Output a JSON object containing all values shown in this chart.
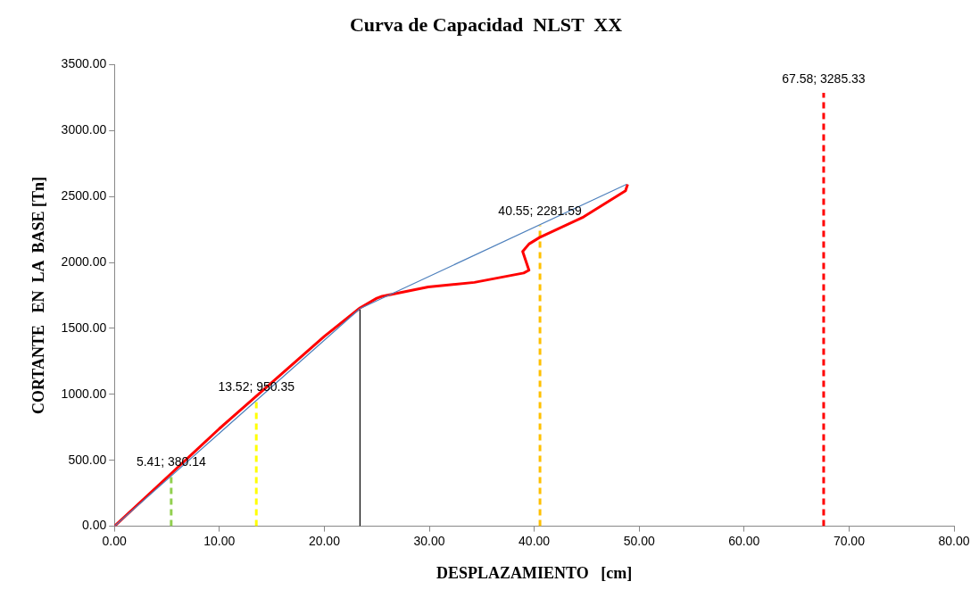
{
  "chart_data": {
    "type": "line",
    "title": "Curva de Capacidad  NLST  XX",
    "xlabel": "DESPLAZAMIENTO   [cm]",
    "ylabel": "CORTANTE   EN  LA  BASE [Tn]",
    "xlim": [
      0,
      80
    ],
    "ylim": [
      0,
      3500
    ],
    "xticks": [
      {
        "value": 0,
        "label": "0.00"
      },
      {
        "value": 10,
        "label": "10.00"
      },
      {
        "value": 20,
        "label": "20.00"
      },
      {
        "value": 30,
        "label": "30.00"
      },
      {
        "value": 40,
        "label": "40.00"
      },
      {
        "value": 50,
        "label": "50.00"
      },
      {
        "value": 60,
        "label": "60.00"
      },
      {
        "value": 70,
        "label": "70.00"
      },
      {
        "value": 80,
        "label": "80.00"
      }
    ],
    "yticks": [
      {
        "value": 0,
        "label": "0.00"
      },
      {
        "value": 500,
        "label": "500.00"
      },
      {
        "value": 1000,
        "label": "1000.00"
      },
      {
        "value": 1500,
        "label": "1500.00"
      },
      {
        "value": 2000,
        "label": "2000.00"
      },
      {
        "value": 2500,
        "label": "2500.00"
      },
      {
        "value": 3000,
        "label": "3000.00"
      },
      {
        "value": 3500,
        "label": "3500.00"
      }
    ],
    "grid": false,
    "legend": false,
    "marker": "none",
    "line_style": "solid",
    "series": [
      {
        "color": "#4f81bd",
        "x": [
          0,
          23.4,
          48.8
        ],
        "values": [
          0,
          1650,
          2593
        ]
      },
      {
        "color": "#ff0000",
        "x": [
          0,
          5.41,
          10,
          20,
          23.4,
          25.0,
          25.5,
          29.9,
          34.3,
          39.0,
          39.5,
          38.9,
          39.5,
          40.5,
          44.7,
          48.7,
          48.9
        ],
        "values": [
          0,
          400,
          740,
          1440,
          1655,
          1729,
          1743,
          1814,
          1849,
          1920,
          1941,
          2083,
          2140,
          2189,
          2345,
          2544,
          2593
        ]
      },
      {
        "color": "#000000",
        "x": [
          23.4,
          23.4
        ],
        "values": [
          0,
          1650
        ]
      },
      {
        "color": "#92d050",
        "x": [
          5.41,
          5.41
        ],
        "values": [
          0,
          380.14
        ],
        "line_style": "dashed"
      },
      {
        "color": "#ffff00",
        "x": [
          13.52,
          13.52
        ],
        "values": [
          0,
          950.35
        ],
        "line_style": "dashed"
      },
      {
        "color": "#ffc000",
        "x": [
          40.55,
          40.55
        ],
        "values": [
          0,
          2281.59
        ],
        "line_style": "dashed"
      },
      {
        "color": "#ff0000",
        "x": [
          67.58,
          67.58
        ],
        "values": [
          0,
          3285.33
        ],
        "line_style": "dashed"
      }
    ],
    "annotations": [
      {
        "text": "5.41; 380.14",
        "x": 5.41,
        "y": 380.14
      },
      {
        "text": "13.52; 950.35",
        "x": 13.52,
        "y": 950.35
      },
      {
        "text": "40.55; 2281.59",
        "x": 40.55,
        "y": 2281.59
      },
      {
        "text": "67.58; 3285.33",
        "x": 67.58,
        "y": 3285.33
      }
    ]
  }
}
